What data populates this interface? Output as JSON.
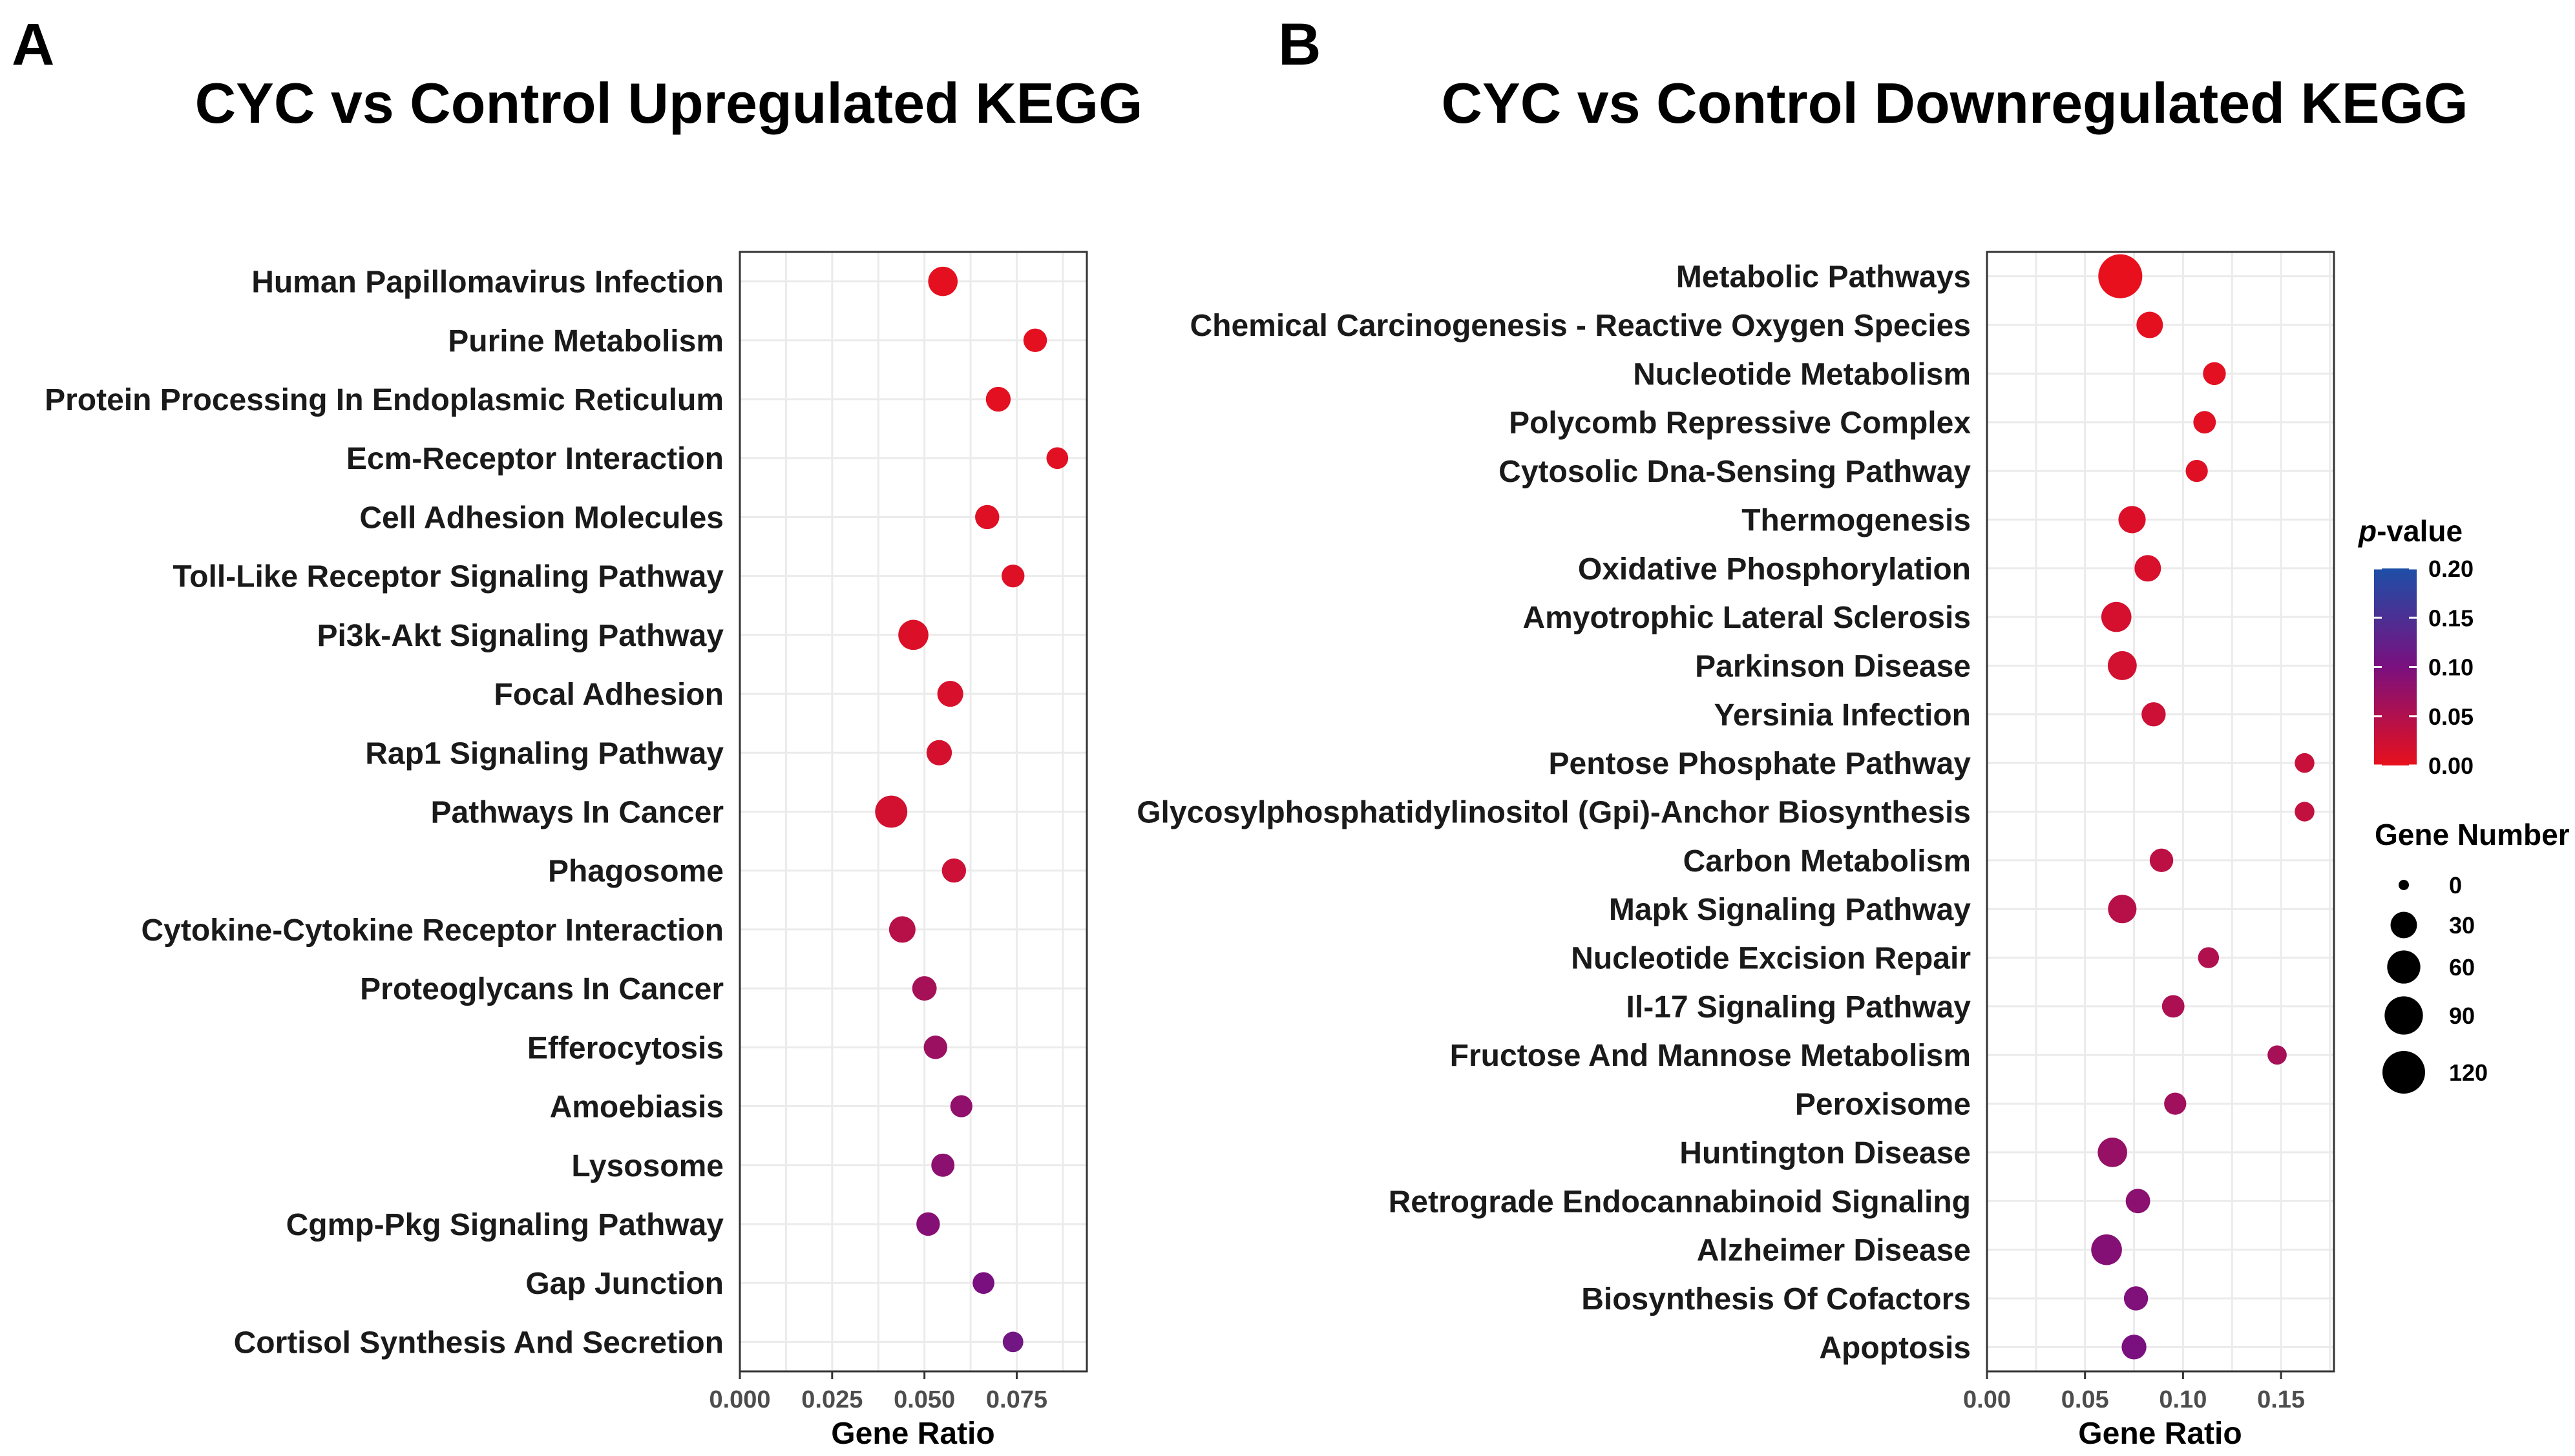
{
  "chart_data": [
    {
      "panel": "A",
      "type": "scatter",
      "title": "CYC vs Control Upregulated KEGG",
      "xlabel": "Gene Ratio",
      "ylabel": "",
      "xlim": [
        0.0,
        0.094
      ],
      "xticks": [
        0.0,
        0.025,
        0.05,
        0.075
      ],
      "xtick_labels": [
        "0.000",
        "0.025",
        "0.050",
        "0.075"
      ],
      "grid": true,
      "points": [
        {
          "term": "Human Papillomavirus Infection",
          "gene_ratio": 0.055,
          "p_value": 0.003,
          "gene_number": 42
        },
        {
          "term": "Purine Metabolism",
          "gene_ratio": 0.08,
          "p_value": 0.004,
          "gene_number": 20
        },
        {
          "term": "Protein Processing In Endoplasmic Reticulum",
          "gene_ratio": 0.07,
          "p_value": 0.005,
          "gene_number": 24
        },
        {
          "term": "Ecm-Receptor Interaction",
          "gene_ratio": 0.086,
          "p_value": 0.006,
          "gene_number": 15
        },
        {
          "term": "Cell Adhesion Molecules",
          "gene_ratio": 0.067,
          "p_value": 0.008,
          "gene_number": 22
        },
        {
          "term": "Toll-Like Receptor Signaling Pathway",
          "gene_ratio": 0.074,
          "p_value": 0.01,
          "gene_number": 18
        },
        {
          "term": "Pi3k-Akt Signaling Pathway",
          "gene_ratio": 0.047,
          "p_value": 0.012,
          "gene_number": 45
        },
        {
          "term": "Focal Adhesion",
          "gene_ratio": 0.057,
          "p_value": 0.015,
          "gene_number": 28
        },
        {
          "term": "Rap1 Signaling Pathway",
          "gene_ratio": 0.054,
          "p_value": 0.018,
          "gene_number": 26
        },
        {
          "term": "Pathways In Cancer",
          "gene_ratio": 0.041,
          "p_value": 0.02,
          "gene_number": 55
        },
        {
          "term": "Phagosome",
          "gene_ratio": 0.058,
          "p_value": 0.025,
          "gene_number": 22
        },
        {
          "term": "Cytokine-Cytokine Receptor Interaction",
          "gene_ratio": 0.044,
          "p_value": 0.045,
          "gene_number": 30
        },
        {
          "term": "Proteoglycans In Cancer",
          "gene_ratio": 0.05,
          "p_value": 0.06,
          "gene_number": 23
        },
        {
          "term": "Efferocytosis",
          "gene_ratio": 0.053,
          "p_value": 0.07,
          "gene_number": 20
        },
        {
          "term": "Amoebiasis",
          "gene_ratio": 0.06,
          "p_value": 0.08,
          "gene_number": 16
        },
        {
          "term": "Lysosome",
          "gene_ratio": 0.055,
          "p_value": 0.085,
          "gene_number": 19
        },
        {
          "term": "Cgmp-Pkg Signaling Pathway",
          "gene_ratio": 0.051,
          "p_value": 0.09,
          "gene_number": 20
        },
        {
          "term": "Gap Junction",
          "gene_ratio": 0.066,
          "p_value": 0.1,
          "gene_number": 15
        },
        {
          "term": "Cortisol Synthesis And Secretion",
          "gene_ratio": 0.074,
          "p_value": 0.11,
          "gene_number": 12
        }
      ]
    },
    {
      "panel": "B",
      "type": "scatter",
      "title": "CYC vs Control Downregulated KEGG",
      "xlabel": "Gene Ratio",
      "ylabel": "",
      "xlim": [
        0.0,
        0.177
      ],
      "xticks": [
        0.0,
        0.05,
        0.1,
        0.15
      ],
      "xtick_labels": [
        "0.00",
        "0.05",
        "0.10",
        "0.15"
      ],
      "grid": true,
      "points": [
        {
          "term": "Metabolic Pathways",
          "gene_ratio": 0.068,
          "p_value": 0.0,
          "gene_number": 130
        },
        {
          "term": "Chemical Carcinogenesis - Reactive Oxygen Species",
          "gene_ratio": 0.083,
          "p_value": 0.003,
          "gene_number": 30
        },
        {
          "term": "Nucleotide Metabolism",
          "gene_ratio": 0.116,
          "p_value": 0.005,
          "gene_number": 18
        },
        {
          "term": "Polycomb Repressive Complex",
          "gene_ratio": 0.111,
          "p_value": 0.006,
          "gene_number": 17
        },
        {
          "term": "Cytosolic Dna-Sensing Pathway",
          "gene_ratio": 0.107,
          "p_value": 0.008,
          "gene_number": 16
        },
        {
          "term": "Thermogenesis",
          "gene_ratio": 0.074,
          "p_value": 0.012,
          "gene_number": 33
        },
        {
          "term": "Oxidative Phosphorylation",
          "gene_ratio": 0.082,
          "p_value": 0.015,
          "gene_number": 30
        },
        {
          "term": "Amyotrophic Lateral Sclerosis",
          "gene_ratio": 0.066,
          "p_value": 0.018,
          "gene_number": 45
        },
        {
          "term": "Parkinson Disease",
          "gene_ratio": 0.069,
          "p_value": 0.02,
          "gene_number": 40
        },
        {
          "term": "Yersinia Infection",
          "gene_ratio": 0.085,
          "p_value": 0.025,
          "gene_number": 22
        },
        {
          "term": "Pentose Phosphate Pathway",
          "gene_ratio": 0.162,
          "p_value": 0.03,
          "gene_number": 10
        },
        {
          "term": "Glycosylphosphatidylinositol (Gpi)-Anchor Biosynthesis",
          "gene_ratio": 0.162,
          "p_value": 0.035,
          "gene_number": 10
        },
        {
          "term": "Carbon Metabolism",
          "gene_ratio": 0.089,
          "p_value": 0.04,
          "gene_number": 20
        },
        {
          "term": "Mapk Signaling Pathway",
          "gene_ratio": 0.069,
          "p_value": 0.045,
          "gene_number": 38
        },
        {
          "term": "Nucleotide Excision Repair",
          "gene_ratio": 0.113,
          "p_value": 0.05,
          "gene_number": 13
        },
        {
          "term": "Il-17 Signaling Pathway",
          "gene_ratio": 0.095,
          "p_value": 0.055,
          "gene_number": 17
        },
        {
          "term": "Fructose And Mannose Metabolism",
          "gene_ratio": 0.148,
          "p_value": 0.06,
          "gene_number": 9
        },
        {
          "term": "Peroxisome",
          "gene_ratio": 0.096,
          "p_value": 0.065,
          "gene_number": 16
        },
        {
          "term": "Huntington Disease",
          "gene_ratio": 0.064,
          "p_value": 0.075,
          "gene_number": 42
        },
        {
          "term": "Retrograde Endocannabinoid Signaling",
          "gene_ratio": 0.077,
          "p_value": 0.085,
          "gene_number": 23
        },
        {
          "term": "Alzheimer Disease",
          "gene_ratio": 0.061,
          "p_value": 0.09,
          "gene_number": 48
        },
        {
          "term": "Biosynthesis Of Cofactors",
          "gene_ratio": 0.076,
          "p_value": 0.095,
          "gene_number": 22
        },
        {
          "term": "Apoptosis",
          "gene_ratio": 0.075,
          "p_value": 0.1,
          "gene_number": 24
        }
      ]
    }
  ],
  "legend": {
    "color_title_italic": "p",
    "color_title_rest": "-value",
    "color_range": [
      0.0,
      0.2
    ],
    "color_ticks": [
      "0.20",
      "0.15",
      "0.10",
      "0.05",
      "0.00"
    ],
    "color_tick_values": [
      0.2,
      0.15,
      0.1,
      0.05,
      0.0
    ],
    "color_low": "#e8101c",
    "color_mid": "#7a107f",
    "color_high": "#1d4fa7",
    "size_title": "Gene Number",
    "size_values": [
      0,
      30,
      60,
      90,
      120
    ],
    "size_labels": [
      "0",
      "30",
      "60",
      "90",
      "120"
    ],
    "point_fill": "#000000"
  }
}
